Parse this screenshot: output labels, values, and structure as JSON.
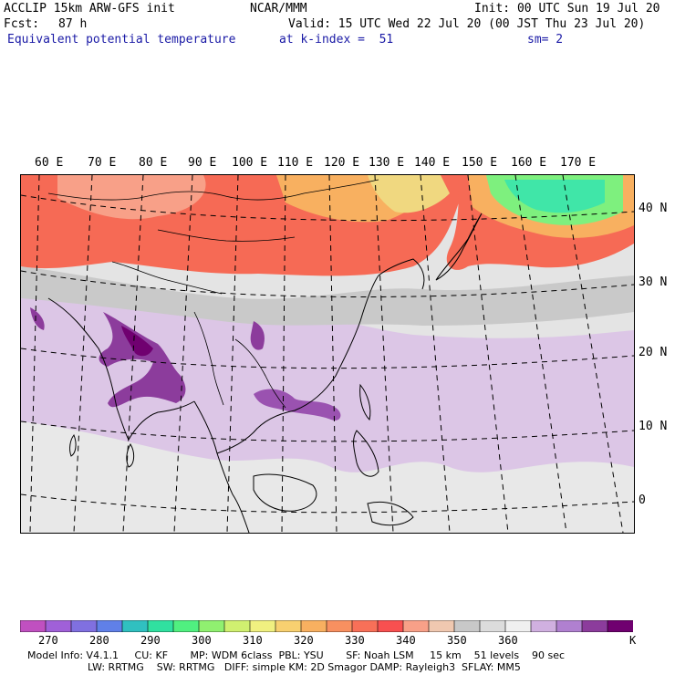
{
  "header": {
    "model": "ACCLIP 15km ARW-GFS init",
    "org": "NCAR/MMM",
    "init": "Init: 00 UTC Sun 19 Jul 20",
    "fcst_label": "Fcst:",
    "fcst_value": "87 h",
    "valid": "Valid: 15 UTC Wed 22 Jul 20 (00 JST Thu 23 Jul 20)",
    "field": "Equivalent potential temperature",
    "level": "at k-index =  51",
    "smoothing": "sm= 2"
  },
  "map": {
    "longitude_labels": [
      "60 E",
      "70 E",
      "80 E",
      "90 E",
      "100 E",
      "110 E",
      "120 E",
      "130 E",
      "140 E",
      "150 E",
      "160 E",
      "170 E"
    ],
    "latitude_labels": [
      "40 N",
      "30 N",
      "20 N",
      "10 N",
      "0"
    ]
  },
  "colorbar": {
    "unit": "K",
    "tick_labels": [
      "270",
      "280",
      "290",
      "300",
      "310",
      "320",
      "330",
      "340",
      "350",
      "360"
    ],
    "colors": [
      "#c050c0",
      "#a060d8",
      "#8070e0",
      "#6080e8",
      "#30c0c0",
      "#30e0a0",
      "#50f080",
      "#90f070",
      "#d0f070",
      "#f0f080",
      "#f8d070",
      "#f8b060",
      "#f89060",
      "#f87058",
      "#f85050",
      "#f8a088",
      "#f0c8b0",
      "#c8c8c8",
      "#dcdcdc",
      "#f0f0f0",
      "#d0b0e0",
      "#b080d0",
      "#8c3c9c",
      "#700070"
    ]
  },
  "footer": {
    "line1": "Model Info: V4.1.1     CU: KF       MP: WDM 6class  PBL: YSU       SF: Noah LSM     15 km    51 levels    90 sec",
    "line2": "LW: RRTMG    SW: RRTMG   DIFF: simple KM: 2D Smagor DAMP: Rayleigh3  SFLAY: MM5"
  }
}
